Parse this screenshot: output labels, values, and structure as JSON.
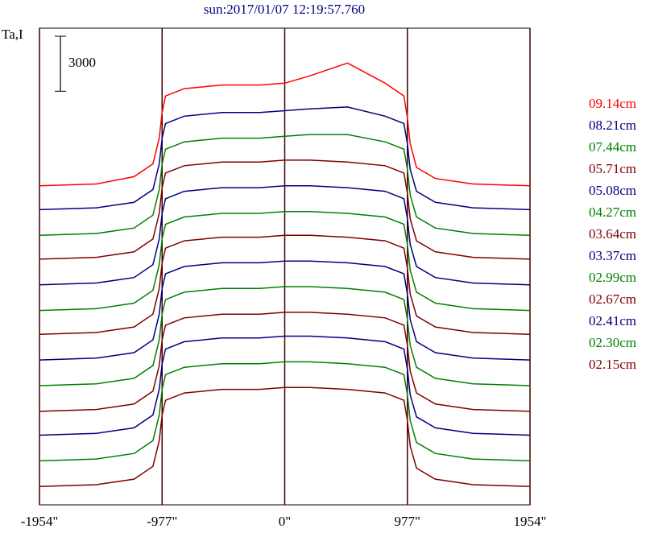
{
  "chart_data": {
    "type": "line",
    "title": "sun:2017/01/07 12:19:57.760",
    "y_label": "Ta,I",
    "scale_bar": 3000,
    "x": [
      -1954,
      -1500,
      -1200,
      -1050,
      -1000,
      -977,
      -950,
      -800,
      -500,
      -200,
      0,
      200,
      500,
      800,
      950,
      977,
      1000,
      1050,
      1200,
      1500,
      1954
    ],
    "xlim": [
      -1954,
      1954
    ],
    "xticks": [
      {
        "value": -1954,
        "label": "-1954\""
      },
      {
        "value": -977,
        "label": "-977\""
      },
      {
        "value": 0,
        "label": "0\""
      },
      {
        "value": 977,
        "label": "977\""
      },
      {
        "value": 1954,
        "label": "1954\""
      }
    ],
    "ylim": [
      0,
      26000
    ],
    "series": [
      {
        "name": "09.14cm",
        "color": "#ff0000",
        "values": [
          17400,
          17500,
          17900,
          18600,
          20000,
          21400,
          22300,
          22700,
          22900,
          22900,
          23000,
          23400,
          24100,
          23000,
          22300,
          21100,
          19700,
          18400,
          17800,
          17500,
          17400
        ]
      },
      {
        "name": "08.21cm",
        "color": "#000080",
        "values": [
          16100,
          16200,
          16500,
          17200,
          18600,
          20000,
          20800,
          21200,
          21400,
          21400,
          21500,
          21600,
          21700,
          21200,
          20800,
          19700,
          18300,
          17100,
          16500,
          16200,
          16100
        ]
      },
      {
        "name": "07.44cm",
        "color": "#008000",
        "values": [
          14700,
          14800,
          15100,
          15800,
          17200,
          18600,
          19400,
          19800,
          20000,
          20000,
          20100,
          20200,
          20200,
          19800,
          19400,
          18300,
          16900,
          15700,
          15100,
          14800,
          14700
        ]
      },
      {
        "name": "05.71cm",
        "color": "#800000",
        "values": [
          13400,
          13500,
          13800,
          14500,
          15900,
          17300,
          18100,
          18500,
          18700,
          18700,
          18800,
          18800,
          18700,
          18500,
          18100,
          17000,
          15600,
          14400,
          13800,
          13500,
          13400
        ]
      },
      {
        "name": "05.08cm",
        "color": "#000080",
        "values": [
          12000,
          12100,
          12400,
          13100,
          14500,
          15900,
          16700,
          17100,
          17300,
          17300,
          17400,
          17400,
          17300,
          17100,
          16700,
          15600,
          14200,
          13000,
          12400,
          12100,
          12000
        ]
      },
      {
        "name": "04.27cm",
        "color": "#008000",
        "values": [
          10600,
          10700,
          11000,
          11700,
          13100,
          14500,
          15300,
          15700,
          15900,
          15900,
          16000,
          16000,
          15900,
          15700,
          15300,
          14200,
          12800,
          11600,
          11000,
          10700,
          10600
        ]
      },
      {
        "name": "03.64cm",
        "color": "#800000",
        "values": [
          9300,
          9400,
          9700,
          10400,
          11800,
          13200,
          14000,
          14400,
          14600,
          14600,
          14700,
          14700,
          14600,
          14400,
          14000,
          12900,
          11500,
          10300,
          9700,
          9400,
          9300
        ]
      },
      {
        "name": "03.37cm",
        "color": "#000080",
        "values": [
          7900,
          8000,
          8300,
          9000,
          10400,
          11800,
          12600,
          13000,
          13200,
          13200,
          13300,
          13300,
          13200,
          13000,
          12600,
          11500,
          10100,
          8900,
          8300,
          8000,
          7900
        ]
      },
      {
        "name": "02.99cm",
        "color": "#008000",
        "values": [
          6500,
          6600,
          6900,
          7600,
          9000,
          10400,
          11200,
          11600,
          11800,
          11800,
          11900,
          11900,
          11800,
          11600,
          11200,
          10100,
          8700,
          7500,
          6900,
          6600,
          6500
        ]
      },
      {
        "name": "02.67cm",
        "color": "#800000",
        "values": [
          5100,
          5200,
          5500,
          6200,
          7600,
          9000,
          9800,
          10200,
          10400,
          10400,
          10500,
          10500,
          10400,
          10200,
          9800,
          8700,
          7300,
          6100,
          5500,
          5200,
          5100
        ]
      },
      {
        "name": "02.41cm",
        "color": "#000080",
        "values": [
          3800,
          3900,
          4200,
          4900,
          6300,
          7700,
          8500,
          8900,
          9100,
          9100,
          9200,
          9200,
          9100,
          8900,
          8500,
          7400,
          6000,
          4800,
          4200,
          3900,
          3800
        ]
      },
      {
        "name": "02.30cm",
        "color": "#008000",
        "values": [
          2400,
          2500,
          2800,
          3500,
          4900,
          6300,
          7100,
          7500,
          7700,
          7700,
          7800,
          7800,
          7700,
          7500,
          7100,
          6000,
          4600,
          3400,
          2800,
          2500,
          2400
        ]
      },
      {
        "name": "02.15cm",
        "color": "#800000",
        "values": [
          1000,
          1100,
          1400,
          2100,
          3500,
          4900,
          5700,
          6100,
          6300,
          6300,
          6400,
          6400,
          6300,
          6100,
          5700,
          4600,
          3200,
          2000,
          1400,
          1100,
          1000
        ]
      }
    ]
  }
}
